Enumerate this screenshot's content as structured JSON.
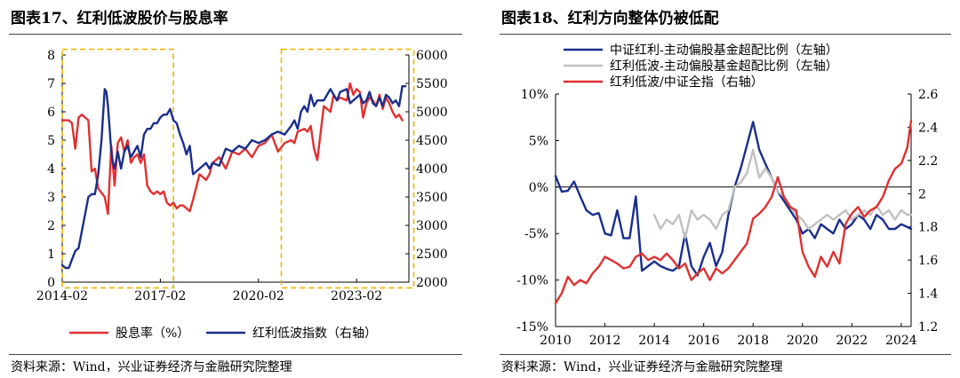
{
  "left_panel": {
    "title": "图表17、红利低波股价与股息率",
    "source": "资料来源：Wind，兴业证券经济与金融研究院整理"
  },
  "right_panel": {
    "title": "图表18、红利方向整体仍被低配",
    "source": "资料来源：Wind，兴业证券经济与金融研究院整理"
  },
  "chart_data": [
    {
      "type": "line",
      "title": "图表17、红利低波股价与股息率",
      "x_range": [
        2014.0,
        2024.6
      ],
      "x_ticks": [
        {
          "x": 2014.0,
          "label": "2014-02"
        },
        {
          "x": 2017.0,
          "label": "2017-02"
        },
        {
          "x": 2020.0,
          "label": "2020-02"
        },
        {
          "x": 2023.0,
          "label": "2023-02"
        }
      ],
      "y_left": {
        "min": 0,
        "max": 8,
        "ticks": [
          0,
          1,
          2,
          3,
          4,
          5,
          6,
          7,
          8
        ],
        "labels": [
          "0",
          "1",
          "2",
          "3",
          "4",
          "5",
          "6",
          "7",
          "8"
        ]
      },
      "y_right": {
        "min": 2000,
        "max": 6000,
        "ticks": [
          2000,
          2500,
          3000,
          3500,
          4000,
          4500,
          5000,
          5500,
          6000
        ],
        "labels": [
          "2000",
          "2500",
          "3000",
          "3500",
          "4000",
          "4500",
          "5000",
          "5500",
          "6000"
        ]
      },
      "highlight_boxes": [
        {
          "x0": 2014.0,
          "x1": 2017.4,
          "y0": -0.2,
          "y1": 8.2
        },
        {
          "x0": 2020.7,
          "x1": 2024.75,
          "y0": -0.2,
          "y1": 8.2
        }
      ],
      "series": [
        {
          "name": "股息率（%）",
          "axis": "left",
          "color": "#e03030",
          "x": [
            2014.0,
            2014.2,
            2014.3,
            2014.4,
            2014.5,
            2014.6,
            2014.8,
            2014.9,
            2015.0,
            2015.1,
            2015.3,
            2015.4,
            2015.45,
            2015.5,
            2015.6,
            2015.7,
            2015.8,
            2015.9,
            2016.0,
            2016.1,
            2016.2,
            2016.3,
            2016.4,
            2016.5,
            2016.6,
            2016.7,
            2016.8,
            2016.9,
            2017.0,
            2017.1,
            2017.2,
            2017.3,
            2017.4,
            2017.5,
            2017.6,
            2017.7,
            2017.8,
            2017.9,
            2018.0,
            2018.2,
            2018.4,
            2018.5,
            2018.6,
            2018.8,
            2019.0,
            2019.2,
            2019.4,
            2019.6,
            2019.8,
            2020.0,
            2020.2,
            2020.4,
            2020.6,
            2020.8,
            2021.0,
            2021.1,
            2021.2,
            2021.4,
            2021.5,
            2021.6,
            2021.7,
            2021.8,
            2022.0,
            2022.2,
            2022.3,
            2022.4,
            2022.5,
            2022.7,
            2022.8,
            2022.9,
            2023.0,
            2023.1,
            2023.2,
            2023.3,
            2023.4,
            2023.5,
            2023.6,
            2023.7,
            2023.8,
            2023.9,
            2024.0,
            2024.1,
            2024.2,
            2024.3,
            2024.4
          ],
          "y": [
            5.7,
            5.7,
            5.6,
            4.7,
            5.8,
            5.9,
            5.7,
            3.9,
            4.0,
            3.3,
            3.0,
            2.4,
            3.6,
            4.8,
            3.4,
            4.9,
            5.1,
            4.6,
            5.0,
            4.2,
            4.4,
            4.5,
            4.2,
            4.5,
            3.4,
            3.2,
            3.1,
            3.2,
            3.1,
            3.2,
            2.8,
            2.7,
            2.8,
            2.6,
            2.7,
            2.7,
            2.6,
            2.5,
            2.9,
            3.8,
            3.6,
            3.8,
            4.2,
            4.4,
            4.0,
            4.6,
            4.5,
            4.7,
            4.4,
            4.8,
            4.9,
            5.2,
            4.6,
            4.9,
            5.0,
            4.9,
            5.3,
            5.4,
            5.3,
            5.5,
            4.7,
            4.3,
            6.2,
            6.0,
            6.6,
            6.4,
            6.5,
            6.4,
            7.0,
            6.6,
            6.8,
            6.7,
            5.8,
            6.3,
            6.5,
            6.4,
            6.2,
            6.6,
            6.1,
            6.5,
            6.3,
            6.0,
            5.8,
            5.9,
            5.7
          ]
        },
        {
          "name": "红利低波指数（右轴）",
          "axis": "right",
          "color": "#1a2f8c",
          "x": [
            2014.0,
            2014.1,
            2014.2,
            2014.3,
            2014.4,
            2014.5,
            2014.6,
            2014.7,
            2014.8,
            2014.9,
            2015.0,
            2015.1,
            2015.2,
            2015.3,
            2015.35,
            2015.4,
            2015.5,
            2015.55,
            2015.6,
            2015.7,
            2015.8,
            2015.9,
            2016.0,
            2016.1,
            2016.2,
            2016.3,
            2016.4,
            2016.5,
            2016.6,
            2016.7,
            2016.8,
            2016.9,
            2017.0,
            2017.1,
            2017.2,
            2017.3,
            2017.4,
            2017.5,
            2017.6,
            2017.7,
            2017.8,
            2017.9,
            2018.0,
            2018.2,
            2018.4,
            2018.5,
            2018.6,
            2018.8,
            2019.0,
            2019.2,
            2019.4,
            2019.6,
            2019.8,
            2020.0,
            2020.2,
            2020.4,
            2020.6,
            2020.8,
            2021.0,
            2021.1,
            2021.2,
            2021.3,
            2021.4,
            2021.5,
            2021.6,
            2021.7,
            2021.8,
            2022.0,
            2022.2,
            2022.3,
            2022.4,
            2022.5,
            2022.7,
            2022.8,
            2022.9,
            2023.0,
            2023.1,
            2023.2,
            2023.3,
            2023.4,
            2023.5,
            2023.6,
            2023.7,
            2023.8,
            2023.9,
            2024.0,
            2024.1,
            2024.2,
            2024.3,
            2024.4,
            2024.5
          ],
          "y": [
            2300,
            2250,
            2250,
            2400,
            2550,
            2600,
            2900,
            3200,
            3500,
            3550,
            3550,
            3900,
            4500,
            5400,
            5350,
            5100,
            4300,
            4100,
            4000,
            4300,
            4000,
            4300,
            4400,
            4200,
            4300,
            4400,
            4200,
            4600,
            4700,
            4700,
            4800,
            4800,
            4900,
            4950,
            4950,
            5050,
            4850,
            4800,
            4600,
            4450,
            4250,
            4400,
            3900,
            4000,
            4100,
            4000,
            4100,
            4050,
            4350,
            4300,
            4400,
            4350,
            4500,
            4450,
            4500,
            4600,
            4650,
            4600,
            4750,
            4850,
            4700,
            5000,
            5100,
            5000,
            5300,
            5100,
            5200,
            5200,
            5400,
            5300,
            5200,
            5350,
            5400,
            5150,
            5200,
            5250,
            5300,
            5150,
            5200,
            5350,
            5150,
            5100,
            5250,
            5100,
            5300,
            5250,
            5150,
            5200,
            5100,
            5450,
            5450
          ]
        }
      ]
    },
    {
      "type": "line",
      "title": "图表18、红利方向整体仍被低配",
      "x_range": [
        2010,
        2024.4
      ],
      "x_ticks": [
        2010,
        2012,
        2014,
        2016,
        2018,
        2020,
        2022,
        2024
      ],
      "y_left": {
        "min": -15,
        "max": 10,
        "ticks": [
          -15,
          -10,
          -5,
          0,
          5,
          10
        ],
        "labels": [
          "-15%",
          "-10%",
          "-5%",
          "0%",
          "5%",
          "10%"
        ]
      },
      "y_right": {
        "min": 1.2,
        "max": 2.6,
        "ticks": [
          1.2,
          1.4,
          1.6,
          1.8,
          2.0,
          2.2,
          2.4,
          2.6
        ],
        "labels": [
          "1.2",
          "1.4",
          "1.6",
          "1.8",
          "2",
          "2.2",
          "2.4",
          "2.6"
        ]
      },
      "series": [
        {
          "name": "中证红利-主动偏股基金超配比例（左轴）",
          "axis": "left",
          "color": "#1a2f8c",
          "x": [
            2010.0,
            2010.25,
            2010.5,
            2010.75,
            2011.0,
            2011.25,
            2011.5,
            2011.75,
            2012.0,
            2012.25,
            2012.5,
            2012.75,
            2013.0,
            2013.25,
            2013.5,
            2013.75,
            2014.0,
            2014.25,
            2014.5,
            2014.75,
            2015.0,
            2015.25,
            2015.5,
            2015.75,
            2016.0,
            2016.25,
            2016.5,
            2016.75,
            2017.0,
            2017.25,
            2017.5,
            2017.75,
            2018.0,
            2018.25,
            2018.5,
            2018.75,
            2019.0,
            2019.25,
            2019.5,
            2019.75,
            2020.0,
            2020.25,
            2020.5,
            2020.75,
            2021.0,
            2021.25,
            2021.5,
            2021.75,
            2022.0,
            2022.25,
            2022.5,
            2022.75,
            2023.0,
            2023.25,
            2023.5,
            2023.75,
            2024.0,
            2024.25,
            2024.4
          ],
          "y": [
            1.2,
            -0.5,
            -0.4,
            0.6,
            -1.0,
            -2.5,
            -3.0,
            -2.8,
            -5.0,
            -5.2,
            -2.5,
            -5.5,
            -5.5,
            -1.0,
            -9.0,
            -8.5,
            -8.0,
            -8.5,
            -8.8,
            -9.0,
            -8.5,
            -5.0,
            -8.5,
            -9.5,
            -7.5,
            -6.0,
            -8.5,
            -7.0,
            -3.0,
            0.0,
            2.0,
            4.5,
            7.0,
            4.0,
            2.5,
            1.0,
            -0.5,
            -1.5,
            -2.5,
            -3.5,
            -5.0,
            -4.5,
            -5.5,
            -4.0,
            -4.5,
            -5.0,
            -3.5,
            -4.5,
            -4.0,
            -3.0,
            -3.5,
            -4.5,
            -3.0,
            -3.5,
            -4.5,
            -4.5,
            -4.0,
            -4.3,
            -4.5
          ]
        },
        {
          "name": "红利低波-主动偏股基金超配比例（左轴）",
          "axis": "left",
          "color": "#c0c0c0",
          "x": [
            2014.0,
            2014.25,
            2014.5,
            2014.75,
            2015.0,
            2015.25,
            2015.5,
            2015.75,
            2016.0,
            2016.25,
            2016.5,
            2016.75,
            2017.0,
            2017.25,
            2017.5,
            2017.75,
            2018.0,
            2018.25,
            2018.5,
            2018.75,
            2019.0,
            2019.25,
            2019.5,
            2019.75,
            2020.0,
            2020.25,
            2020.5,
            2020.75,
            2021.0,
            2021.25,
            2021.5,
            2021.75,
            2022.0,
            2022.25,
            2022.5,
            2022.75,
            2023.0,
            2023.25,
            2023.5,
            2023.75,
            2024.0,
            2024.25,
            2024.4
          ],
          "y": [
            -3.0,
            -4.5,
            -3.5,
            -4.0,
            -3.0,
            -5.5,
            -2.5,
            -3.5,
            -3.0,
            -3.5,
            -4.5,
            -3.0,
            -2.5,
            0.0,
            0.5,
            1.5,
            4.0,
            1.0,
            2.0,
            1.0,
            -0.5,
            -1.0,
            -2.0,
            -3.0,
            -3.5,
            -4.5,
            -4.0,
            -3.5,
            -3.0,
            -3.5,
            -3.0,
            -2.5,
            -3.5,
            -3.0,
            -2.5,
            -3.0,
            -2.0,
            -3.0,
            -2.5,
            -3.5,
            -2.5,
            -3.0,
            -3.0
          ]
        },
        {
          "name": "红利低波/中证全指（右轴）",
          "axis": "right",
          "color": "#e03030",
          "x": [
            2010.0,
            2010.25,
            2010.5,
            2010.75,
            2011.0,
            2011.25,
            2011.5,
            2011.75,
            2012.0,
            2012.25,
            2012.5,
            2012.75,
            2013.0,
            2013.25,
            2013.5,
            2013.75,
            2014.0,
            2014.25,
            2014.5,
            2014.75,
            2015.0,
            2015.25,
            2015.5,
            2015.75,
            2016.0,
            2016.25,
            2016.5,
            2016.75,
            2017.0,
            2017.25,
            2017.5,
            2017.75,
            2018.0,
            2018.25,
            2018.5,
            2018.75,
            2019.0,
            2019.25,
            2019.5,
            2019.75,
            2020.0,
            2020.25,
            2020.5,
            2020.75,
            2021.0,
            2021.25,
            2021.5,
            2021.75,
            2022.0,
            2022.25,
            2022.5,
            2022.75,
            2023.0,
            2023.25,
            2023.5,
            2023.75,
            2024.0,
            2024.25,
            2024.4
          ],
          "y": [
            1.34,
            1.4,
            1.5,
            1.45,
            1.48,
            1.46,
            1.52,
            1.56,
            1.62,
            1.6,
            1.58,
            1.55,
            1.56,
            1.62,
            1.64,
            1.6,
            1.62,
            1.6,
            1.64,
            1.6,
            1.55,
            1.58,
            1.48,
            1.52,
            1.55,
            1.48,
            1.55,
            1.52,
            1.55,
            1.6,
            1.65,
            1.7,
            1.85,
            1.88,
            1.92,
            1.98,
            2.1,
            1.98,
            1.92,
            1.9,
            1.65,
            1.56,
            1.5,
            1.62,
            1.56,
            1.65,
            1.58,
            1.82,
            1.88,
            1.92,
            1.86,
            1.9,
            1.92,
            1.98,
            2.08,
            2.15,
            2.18,
            2.28,
            2.44
          ]
        }
      ]
    }
  ]
}
